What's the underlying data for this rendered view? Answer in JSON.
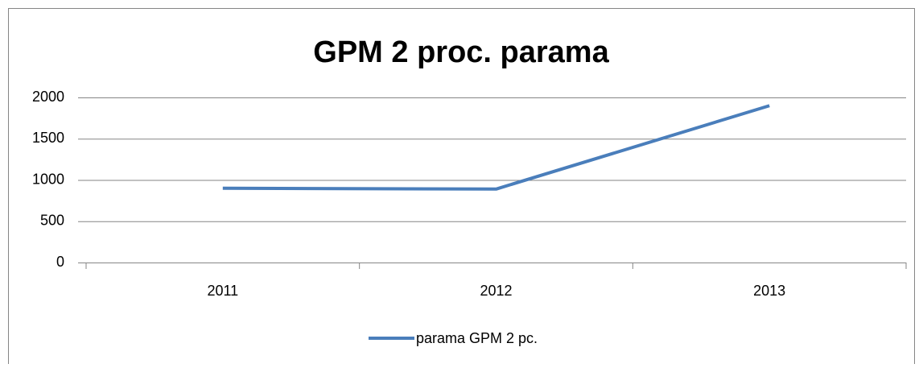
{
  "chart_data": {
    "type": "line",
    "title": "GPM 2 proc. parama",
    "categories": [
      "2011",
      "2012",
      "2013"
    ],
    "series": [
      {
        "name": "parama GPM 2 pc.",
        "color": "#4a7ebb",
        "values": [
          900,
          890,
          1900
        ]
      }
    ],
    "ylim": [
      0,
      2000
    ],
    "yticks": [
      0,
      500,
      1000,
      1500,
      2000
    ],
    "grid": true,
    "legend": "bottom"
  }
}
